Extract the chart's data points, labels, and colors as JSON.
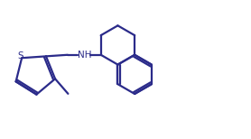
{
  "bg_color": "#ffffff",
  "line_color": "#2b2b8a",
  "line_width": 1.6,
  "figsize": [
    2.78,
    1.54
  ],
  "dpi": 100
}
